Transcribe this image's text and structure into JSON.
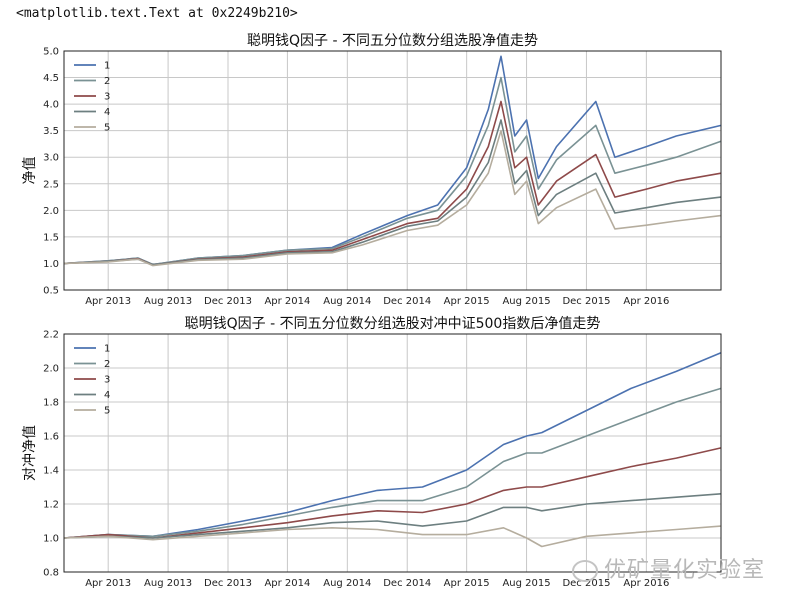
{
  "repr_text": "<matplotlib.text.Text at 0x2249b210>",
  "watermark": "优矿量化实验室",
  "colors": {
    "s1": "#4c72b0",
    "s2": "#7a9294",
    "s3": "#8e4a4a",
    "s4": "#6d7f80",
    "s5": "#b5ad9e"
  },
  "chart_data": [
    {
      "type": "line",
      "title": "聪明钱Q因子 - 不同五分位数分组选股净值走势",
      "ylabel": "净值",
      "xlabel": "",
      "ylim": [
        0.5,
        5.0
      ],
      "yticks": [
        "0.5",
        "1.0",
        "1.5",
        "2.0",
        "2.5",
        "3.0",
        "3.5",
        "4.0",
        "4.5",
        "5.0"
      ],
      "xlim": [
        "2013-01-01",
        "2016-08-31"
      ],
      "xticks": [
        "Apr 2013",
        "Aug 2013",
        "Dec 2013",
        "Apr 2014",
        "Aug 2014",
        "Dec 2014",
        "Apr 2015",
        "Aug 2015",
        "Dec 2015",
        "Apr 2016"
      ],
      "xtick_dates": [
        "2013-04-01",
        "2013-08-01",
        "2013-12-01",
        "2014-04-01",
        "2014-08-01",
        "2014-12-01",
        "2015-04-01",
        "2015-08-01",
        "2015-12-01",
        "2016-04-01"
      ],
      "grid": true,
      "legend": "top-left",
      "x": [
        "2013-01-01",
        "2013-04-01",
        "2013-06-01",
        "2013-07-01",
        "2013-10-01",
        "2014-01-01",
        "2014-04-01",
        "2014-07-01",
        "2014-09-01",
        "2014-12-01",
        "2015-02-01",
        "2015-04-01",
        "2015-05-15",
        "2015-06-10",
        "2015-07-08",
        "2015-08-01",
        "2015-08-25",
        "2015-10-01",
        "2015-12-20",
        "2016-01-28",
        "2016-04-01",
        "2016-06-01",
        "2016-08-31"
      ],
      "series": [
        {
          "name": "1",
          "values": [
            1.0,
            1.05,
            1.1,
            0.98,
            1.1,
            1.15,
            1.25,
            1.3,
            1.55,
            1.9,
            2.1,
            2.8,
            3.9,
            4.9,
            3.4,
            3.7,
            2.6,
            3.2,
            4.05,
            3.0,
            3.2,
            3.4,
            3.6
          ]
        },
        {
          "name": "2",
          "values": [
            1.0,
            1.05,
            1.1,
            0.98,
            1.1,
            1.15,
            1.25,
            1.28,
            1.5,
            1.85,
            2.0,
            2.65,
            3.6,
            4.5,
            3.1,
            3.4,
            2.4,
            2.95,
            3.6,
            2.7,
            2.85,
            3.0,
            3.3
          ]
        },
        {
          "name": "3",
          "values": [
            1.0,
            1.04,
            1.09,
            0.97,
            1.08,
            1.12,
            1.22,
            1.25,
            1.45,
            1.75,
            1.85,
            2.4,
            3.2,
            4.05,
            2.8,
            3.0,
            2.1,
            2.55,
            3.05,
            2.25,
            2.4,
            2.55,
            2.7
          ]
        },
        {
          "name": "4",
          "values": [
            1.0,
            1.04,
            1.08,
            0.97,
            1.07,
            1.1,
            1.2,
            1.22,
            1.4,
            1.7,
            1.8,
            2.25,
            2.9,
            3.7,
            2.5,
            2.75,
            1.9,
            2.3,
            2.7,
            1.95,
            2.05,
            2.15,
            2.25
          ]
        },
        {
          "name": "5",
          "values": [
            1.0,
            1.03,
            1.08,
            0.96,
            1.06,
            1.08,
            1.18,
            1.2,
            1.35,
            1.62,
            1.72,
            2.1,
            2.7,
            3.5,
            2.3,
            2.55,
            1.75,
            2.05,
            2.4,
            1.65,
            1.72,
            1.8,
            1.9
          ]
        }
      ]
    },
    {
      "type": "line",
      "title": "聪明钱Q因子 - 不同五分位数分组选股对冲中证500指数后净值走势",
      "ylabel": "对冲净值",
      "xlabel": "",
      "ylim": [
        0.8,
        2.2
      ],
      "yticks": [
        "0.8",
        "1.0",
        "1.2",
        "1.4",
        "1.6",
        "1.8",
        "2.0",
        "2.2"
      ],
      "xlim": [
        "2013-01-01",
        "2016-08-31"
      ],
      "xticks": [
        "Apr 2013",
        "Aug 2013",
        "Dec 2013",
        "Apr 2014",
        "Aug 2014",
        "Dec 2014",
        "Apr 2015",
        "Aug 2015",
        "Dec 2015",
        "Apr 2016"
      ],
      "xtick_dates": [
        "2013-04-01",
        "2013-08-01",
        "2013-12-01",
        "2014-04-01",
        "2014-08-01",
        "2014-12-01",
        "2015-04-01",
        "2015-08-01",
        "2015-12-01",
        "2016-04-01"
      ],
      "grid": true,
      "legend": "top-left",
      "x": [
        "2013-01-01",
        "2013-04-01",
        "2013-07-01",
        "2013-10-01",
        "2014-01-01",
        "2014-04-01",
        "2014-07-01",
        "2014-10-01",
        "2015-01-01",
        "2015-04-01",
        "2015-06-15",
        "2015-08-01",
        "2015-09-01",
        "2015-12-01",
        "2016-03-01",
        "2016-06-01",
        "2016-08-31"
      ],
      "series": [
        {
          "name": "1",
          "values": [
            1.0,
            1.02,
            1.01,
            1.05,
            1.1,
            1.15,
            1.22,
            1.28,
            1.3,
            1.4,
            1.55,
            1.6,
            1.62,
            1.75,
            1.88,
            1.98,
            2.09
          ]
        },
        {
          "name": "2",
          "values": [
            1.0,
            1.02,
            1.01,
            1.04,
            1.08,
            1.13,
            1.18,
            1.22,
            1.22,
            1.3,
            1.45,
            1.5,
            1.5,
            1.6,
            1.7,
            1.8,
            1.88
          ]
        },
        {
          "name": "3",
          "values": [
            1.0,
            1.02,
            1.0,
            1.03,
            1.06,
            1.09,
            1.13,
            1.16,
            1.15,
            1.2,
            1.28,
            1.3,
            1.3,
            1.36,
            1.42,
            1.47,
            1.53
          ]
        },
        {
          "name": "4",
          "values": [
            1.0,
            1.01,
            1.0,
            1.02,
            1.04,
            1.06,
            1.09,
            1.1,
            1.07,
            1.1,
            1.18,
            1.18,
            1.16,
            1.2,
            1.22,
            1.24,
            1.26
          ]
        },
        {
          "name": "5",
          "values": [
            1.0,
            1.01,
            0.99,
            1.01,
            1.03,
            1.05,
            1.06,
            1.05,
            1.02,
            1.02,
            1.06,
            1.0,
            0.95,
            1.01,
            1.03,
            1.05,
            1.07
          ]
        }
      ]
    }
  ]
}
